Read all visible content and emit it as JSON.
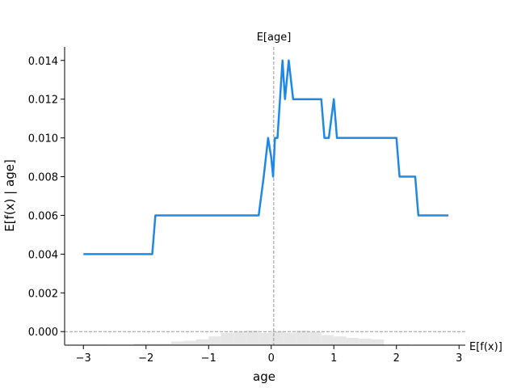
{
  "chart_data": {
    "type": "line",
    "title": "",
    "xlabel": "age",
    "ylabel": "E[f(x) | age]",
    "xlim": [
      -3.3,
      3.1
    ],
    "ylim": [
      -0.0007,
      0.0147
    ],
    "xticks": [
      -3,
      -2,
      -1,
      0,
      1,
      2,
      3
    ],
    "xtick_labels": [
      "−3",
      "−2",
      "−1",
      "0",
      "1",
      "2",
      "3"
    ],
    "yticks": [
      0.0,
      0.002,
      0.004,
      0.006,
      0.008,
      0.01,
      0.012,
      0.014
    ],
    "ytick_labels": [
      "0.000",
      "0.002",
      "0.004",
      "0.006",
      "0.008",
      "0.010",
      "0.012",
      "0.014"
    ],
    "grid": false,
    "line_color": "#1E88E5",
    "reference_color": "#999999",
    "histogram_color": "#e6e6e6",
    "expected_feature_value": 0.04,
    "expected_feature_label": "E[age]",
    "expected_output_value": 0.0,
    "expected_output_label": "E[f(x)]",
    "series": [
      {
        "x": [
          -3.0,
          -1.9,
          -1.85,
          -0.2,
          -0.12,
          -0.05,
          0.0,
          0.03,
          0.06,
          0.1,
          0.18,
          0.22,
          0.28,
          0.35,
          0.8,
          0.85,
          0.92,
          1.0,
          1.05,
          1.1,
          2.0,
          2.05,
          2.3,
          2.35,
          2.83
        ],
        "y": [
          0.004,
          0.004,
          0.006,
          0.006,
          0.008,
          0.01,
          0.009,
          0.008,
          0.01,
          0.01,
          0.014,
          0.012,
          0.014,
          0.012,
          0.012,
          0.01,
          0.01,
          0.012,
          0.01,
          0.01,
          0.01,
          0.008,
          0.008,
          0.006,
          0.006
        ]
      }
    ],
    "histogram": {
      "bin_edges": [
        -3.0,
        -2.8,
        -2.6,
        -2.4,
        -2.2,
        -2.0,
        -1.8,
        -1.6,
        -1.4,
        -1.2,
        -1.0,
        -0.8,
        -0.6,
        -0.4,
        -0.2,
        0.0,
        0.2,
        0.4,
        0.6,
        0.8,
        1.0,
        1.2,
        1.4,
        1.6,
        1.8,
        2.0,
        2.2,
        2.4,
        2.6,
        2.8
      ],
      "heights": [
        0.05,
        0.05,
        0.0,
        0.0,
        0.1,
        0.1,
        0.1,
        0.25,
        0.3,
        0.4,
        0.6,
        0.85,
        0.95,
        1.0,
        0.85,
        0.95,
        0.85,
        1.0,
        0.9,
        0.7,
        0.6,
        0.5,
        0.45,
        0.4,
        0.0,
        0.05,
        0.0,
        0.0,
        0.0
      ]
    }
  }
}
